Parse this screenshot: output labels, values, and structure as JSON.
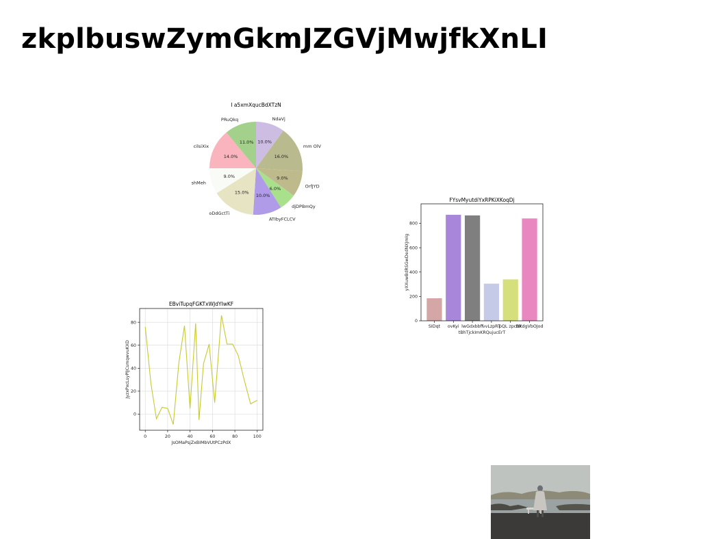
{
  "page": {
    "title": "zkplbuswZymGkmJZGVjMwjfkXnLI"
  },
  "chart_data": [
    {
      "type": "pie",
      "title": "I a5xmXqucBdXTzN",
      "slices": [
        {
          "label": "NdaVj",
          "value": 10.0,
          "pct_label": "10.0%",
          "color": "#cdbde3"
        },
        {
          "label": "mm OlV",
          "value": 16.0,
          "pct_label": "16.0%",
          "color": "#b9bb8e"
        },
        {
          "label": "OrfJYD",
          "value": 9.0,
          "pct_label": "9.0%",
          "color": "#bfba8c"
        },
        {
          "label": "djDPBmQy",
          "value": 6.0,
          "pct_label": "6.0%",
          "color": "#a8e08c"
        },
        {
          "label": "ATIbyFCLCV",
          "value": 10.0,
          "pct_label": "10.0%",
          "color": "#af9be8"
        },
        {
          "label": "oDdGctTi",
          "value": 15.0,
          "pct_label": "15.0%",
          "color": "#e6e4c2"
        },
        {
          "label": "shMeh",
          "value": 9.0,
          "pct_label": "9.0%",
          "color": "#f8fbf6"
        },
        {
          "label": "cilsiXix",
          "value": 14.0,
          "pct_label": "14.0%",
          "color": "#fab4be"
        },
        {
          "label": "PRuQkq",
          "value": 11.0,
          "pct_label": "11.0%",
          "color": "#a3d18c"
        }
      ],
      "start_angle_deg": 90,
      "direction": "clockwise"
    },
    {
      "type": "bar",
      "title": "FYsvMyutdiYxRPKiXKoqDj",
      "xlabel": "tBhTjckImKRQujucErT",
      "ylabel": "yXXuwBdRSGwDedNXJmIg",
      "categories": [
        "SIDqt",
        "ovKyi",
        "lwGdxbbff",
        "vvLzpRT",
        "pQL zpcNk",
        "DKdgVbOJod"
      ],
      "values": [
        185,
        870,
        865,
        305,
        340,
        840
      ],
      "colors": [
        "#d4a6a6",
        "#a887db",
        "#7f7f7f",
        "#c5cbe6",
        "#d5e07c",
        "#e887c0"
      ],
      "ylim": [
        0,
        960
      ],
      "yticks": [
        0,
        200,
        400,
        600,
        800
      ]
    },
    {
      "type": "line",
      "title": "EBviTupqFGKTxWJdYIwKF",
      "xlabel": "JsOMaPsjZxBIMbVUtPCzPdX",
      "ylabel": "JyzxPxcLsyPlJCsmqwvuKXD",
      "color": "#c7c930",
      "x": [
        0,
        5,
        10,
        15,
        20,
        25,
        30,
        35,
        40,
        45,
        48,
        52,
        57,
        62,
        68,
        73,
        78,
        83,
        88,
        94,
        100
      ],
      "y": [
        76,
        27,
        -4,
        6,
        5,
        -9,
        45,
        77,
        5,
        79,
        -5,
        44,
        61,
        10,
        86,
        61,
        61,
        51,
        31,
        9,
        12
      ],
      "xlim": [
        -5,
        105
      ],
      "ylim": [
        -14,
        92
      ],
      "xticks": [
        0,
        20,
        40,
        60,
        80,
        100
      ],
      "yticks": [
        0,
        20,
        40,
        60,
        80
      ],
      "grid": true
    }
  ],
  "photo": {
    "colors": {
      "sky": "#bfc3c0",
      "hills": "#8d8a77",
      "water": "#9aa3a2",
      "ground": "#3b3a38"
    }
  }
}
